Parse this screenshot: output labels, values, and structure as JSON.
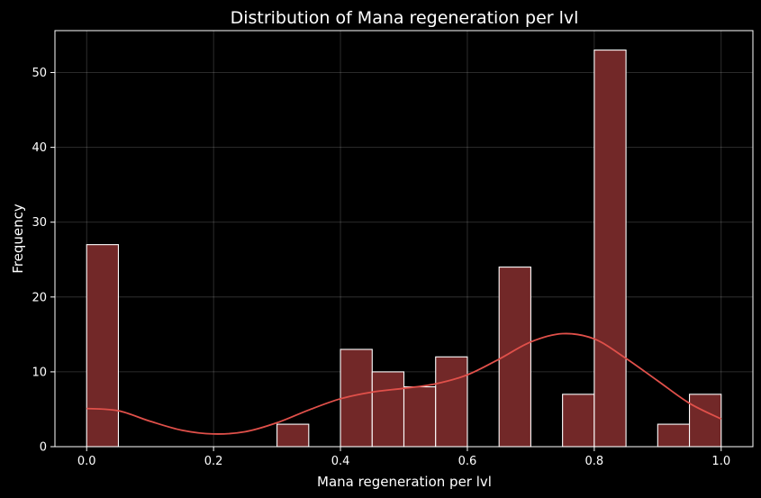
{
  "chart_data": {
    "type": "bar",
    "title": "Distribution of Mana regeneration per lvl",
    "xlabel": "Mana regeneration per lvl",
    "ylabel": "Frequency",
    "xlim": [
      -0.05,
      1.05
    ],
    "ylim": [
      0,
      55.6
    ],
    "xticks": [
      0.0,
      0.2,
      0.4,
      0.6,
      0.8,
      1.0
    ],
    "xtick_labels": [
      "0.0",
      "0.2",
      "0.4",
      "0.6",
      "0.8",
      "1.0"
    ],
    "yticks": [
      0,
      10,
      20,
      30,
      40,
      50
    ],
    "ytick_labels": [
      "0",
      "10",
      "20",
      "30",
      "40",
      "50"
    ],
    "grid": true,
    "bin_width": 0.05,
    "bins": [
      {
        "start": 0.0,
        "end": 0.05,
        "count": 27
      },
      {
        "start": 0.3,
        "end": 0.35,
        "count": 3
      },
      {
        "start": 0.4,
        "end": 0.45,
        "count": 13
      },
      {
        "start": 0.45,
        "end": 0.5,
        "count": 10
      },
      {
        "start": 0.5,
        "end": 0.55,
        "count": 8
      },
      {
        "start": 0.55,
        "end": 0.6,
        "count": 12
      },
      {
        "start": 0.65,
        "end": 0.7,
        "count": 24
      },
      {
        "start": 0.75,
        "end": 0.8,
        "count": 7
      },
      {
        "start": 0.8,
        "end": 0.85,
        "count": 53
      },
      {
        "start": 0.9,
        "end": 0.95,
        "count": 3
      },
      {
        "start": 0.95,
        "end": 1.0,
        "count": 7
      }
    ],
    "kde": {
      "x": [
        0.0,
        0.05,
        0.1,
        0.15,
        0.2,
        0.25,
        0.3,
        0.35,
        0.4,
        0.45,
        0.5,
        0.55,
        0.6,
        0.65,
        0.7,
        0.75,
        0.8,
        0.85,
        0.9,
        0.95,
        1.0
      ],
      "y": [
        5.1,
        4.8,
        3.4,
        2.2,
        1.7,
        2.0,
        3.2,
        4.9,
        6.4,
        7.3,
        7.8,
        8.4,
        9.6,
        11.7,
        14.0,
        15.1,
        14.4,
        11.8,
        8.8,
        5.8,
        3.7
      ]
    },
    "colors": {
      "bar_fill": "#722828",
      "bar_edge": "#ffffff",
      "kde_line": "#e0504a",
      "background": "#000000",
      "text": "#ffffff"
    }
  }
}
